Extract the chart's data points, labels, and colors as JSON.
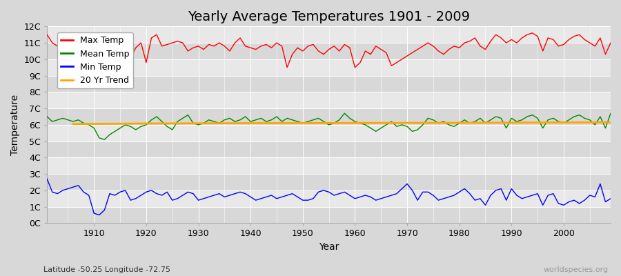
{
  "title": "Yearly Average Temperatures 1901 - 2009",
  "xlabel": "Year",
  "ylabel": "Temperature",
  "subtitle_lat": "Latitude -50.25 Longitude -72.75",
  "watermark": "worldspecies.org",
  "years": [
    1901,
    1902,
    1903,
    1904,
    1905,
    1906,
    1907,
    1908,
    1909,
    1910,
    1911,
    1912,
    1913,
    1914,
    1915,
    1916,
    1917,
    1918,
    1919,
    1920,
    1921,
    1922,
    1923,
    1924,
    1925,
    1926,
    1927,
    1928,
    1929,
    1930,
    1931,
    1932,
    1933,
    1934,
    1935,
    1936,
    1937,
    1938,
    1939,
    1940,
    1941,
    1942,
    1943,
    1944,
    1945,
    1946,
    1947,
    1948,
    1949,
    1950,
    1951,
    1952,
    1953,
    1954,
    1955,
    1956,
    1957,
    1958,
    1959,
    1960,
    1961,
    1962,
    1963,
    1964,
    1965,
    1966,
    1967,
    1968,
    1969,
    1970,
    1971,
    1972,
    1973,
    1974,
    1975,
    1976,
    1977,
    1978,
    1979,
    1980,
    1981,
    1982,
    1983,
    1984,
    1985,
    1986,
    1987,
    1988,
    1989,
    1990,
    1991,
    1992,
    1993,
    1994,
    1995,
    1996,
    1997,
    1998,
    1999,
    2000,
    2001,
    2002,
    2003,
    2004,
    2005,
    2006,
    2007,
    2008,
    2009
  ],
  "max_temp": [
    11.5,
    11.0,
    10.8,
    11.3,
    11.2,
    10.5,
    10.2,
    9.8,
    10.5,
    10.3,
    10.8,
    9.2,
    10.5,
    10.8,
    11.3,
    10.6,
    10.1,
    10.7,
    11.0,
    9.8,
    11.3,
    11.5,
    10.8,
    10.9,
    11.0,
    11.1,
    11.0,
    10.5,
    10.7,
    10.8,
    10.6,
    10.9,
    10.8,
    11.0,
    10.8,
    10.5,
    11.0,
    11.3,
    10.8,
    10.7,
    10.6,
    10.8,
    10.9,
    10.7,
    11.0,
    10.8,
    9.5,
    10.3,
    10.7,
    10.5,
    10.8,
    10.9,
    10.5,
    10.3,
    10.6,
    10.8,
    10.5,
    10.9,
    10.7,
    9.5,
    9.8,
    10.5,
    10.3,
    10.8,
    10.6,
    10.4,
    9.6,
    9.8,
    10.0,
    10.2,
    10.4,
    10.6,
    10.8,
    11.0,
    10.8,
    10.5,
    10.3,
    10.6,
    10.8,
    10.7,
    11.0,
    11.1,
    11.3,
    10.8,
    10.6,
    11.1,
    11.5,
    11.3,
    11.0,
    11.2,
    11.0,
    11.3,
    11.5,
    11.6,
    11.4,
    10.5,
    11.3,
    11.2,
    10.8,
    10.9,
    11.2,
    11.4,
    11.5,
    11.2,
    11.0,
    10.8,
    11.3,
    10.3,
    11.0
  ],
  "mean_temp": [
    6.5,
    6.2,
    6.3,
    6.4,
    6.3,
    6.2,
    6.3,
    6.1,
    6.0,
    5.8,
    5.2,
    5.1,
    5.4,
    5.6,
    5.8,
    6.0,
    5.9,
    5.7,
    5.9,
    6.0,
    6.3,
    6.5,
    6.2,
    5.9,
    5.7,
    6.2,
    6.4,
    6.6,
    6.1,
    6.0,
    6.1,
    6.3,
    6.2,
    6.1,
    6.3,
    6.4,
    6.2,
    6.3,
    6.5,
    6.2,
    6.3,
    6.4,
    6.2,
    6.3,
    6.5,
    6.2,
    6.4,
    6.3,
    6.2,
    6.1,
    6.2,
    6.3,
    6.4,
    6.2,
    6.0,
    6.1,
    6.3,
    6.7,
    6.4,
    6.2,
    6.1,
    6.0,
    5.8,
    5.6,
    5.8,
    6.0,
    6.2,
    5.9,
    6.0,
    5.9,
    5.6,
    5.7,
    6.0,
    6.4,
    6.3,
    6.1,
    6.2,
    6.0,
    5.9,
    6.1,
    6.3,
    6.1,
    6.2,
    6.4,
    6.1,
    6.3,
    6.5,
    6.4,
    5.8,
    6.4,
    6.2,
    6.3,
    6.5,
    6.6,
    6.4,
    5.8,
    6.3,
    6.4,
    6.2,
    6.1,
    6.3,
    6.5,
    6.6,
    6.4,
    6.3,
    6.0,
    6.5,
    5.8,
    6.7
  ],
  "min_temp": [
    2.7,
    1.9,
    1.8,
    2.0,
    2.1,
    2.2,
    2.3,
    1.9,
    1.7,
    0.6,
    0.5,
    0.8,
    1.8,
    1.7,
    1.9,
    2.0,
    1.4,
    1.5,
    1.7,
    1.9,
    2.0,
    1.8,
    1.7,
    1.9,
    1.4,
    1.5,
    1.7,
    1.9,
    1.8,
    1.4,
    1.5,
    1.6,
    1.7,
    1.8,
    1.6,
    1.7,
    1.8,
    1.9,
    1.8,
    1.6,
    1.4,
    1.5,
    1.6,
    1.7,
    1.5,
    1.6,
    1.7,
    1.8,
    1.6,
    1.4,
    1.4,
    1.5,
    1.9,
    2.0,
    1.9,
    1.7,
    1.8,
    1.9,
    1.7,
    1.5,
    1.6,
    1.7,
    1.6,
    1.4,
    1.5,
    1.6,
    1.7,
    1.8,
    2.1,
    2.4,
    2.0,
    1.4,
    1.9,
    1.9,
    1.7,
    1.4,
    1.5,
    1.6,
    1.7,
    1.9,
    2.1,
    1.8,
    1.4,
    1.5,
    1.1,
    1.7,
    2.0,
    2.1,
    1.4,
    2.1,
    1.7,
    1.5,
    1.6,
    1.7,
    1.8,
    1.1,
    1.7,
    1.8,
    1.2,
    1.1,
    1.3,
    1.4,
    1.2,
    1.4,
    1.7,
    1.6,
    2.4,
    1.3,
    1.5
  ],
  "trend_years": [
    1906,
    1920,
    1940,
    1960,
    1980,
    2009
  ],
  "trend_vals": [
    6.05,
    6.08,
    6.1,
    6.11,
    6.12,
    6.15
  ],
  "ylim": [
    0,
    12
  ],
  "yticks": [
    0,
    1,
    2,
    3,
    4,
    5,
    6,
    7,
    8,
    9,
    10,
    11,
    12
  ],
  "ytick_labels": [
    "0C",
    "1C",
    "2C",
    "3C",
    "4C",
    "5C",
    "6C",
    "7C",
    "8C",
    "9C",
    "10C",
    "11C",
    "12C"
  ],
  "xlim": [
    1901,
    2009
  ],
  "xticks": [
    1910,
    1920,
    1930,
    1940,
    1950,
    1960,
    1970,
    1980,
    1990,
    2000
  ],
  "max_color": "#ff0000",
  "mean_color": "#008800",
  "min_color": "#0000ff",
  "trend_color": "#ffa500",
  "bg_color": "#d8d8d8",
  "plot_bg_color": "#e8e8e8",
  "stripe_color": "#d8d8d8",
  "grid_color": "#ffffff",
  "title_fontsize": 14,
  "label_fontsize": 10,
  "tick_fontsize": 9,
  "legend_fontsize": 9,
  "line_width": 1.0
}
